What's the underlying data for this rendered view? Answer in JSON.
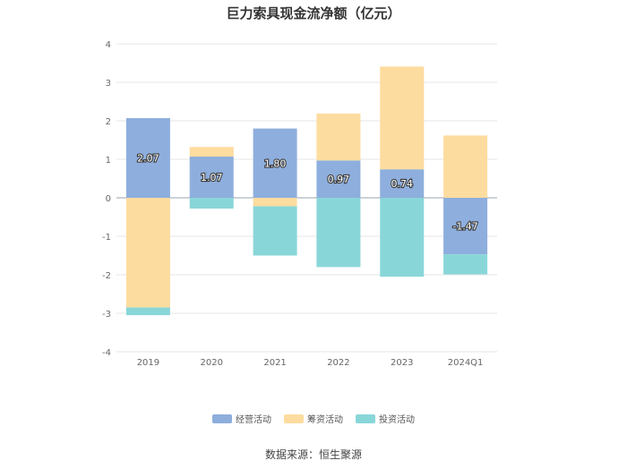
{
  "chart_data": {
    "type": "bar",
    "stacked": true,
    "title": "巨力索具现金流净额（亿元）",
    "categories": [
      "2019",
      "2020",
      "2021",
      "2022",
      "2023",
      "2024Q1"
    ],
    "series": [
      {
        "name": "经营活动",
        "color": "#8eaedd",
        "values": [
          2.07,
          1.07,
          1.8,
          0.97,
          0.74,
          -1.47
        ]
      },
      {
        "name": "筹资活动",
        "color": "#fddc9f",
        "values": [
          -2.85,
          0.25,
          -0.22,
          1.22,
          2.67,
          1.62
        ]
      },
      {
        "name": "投资活动",
        "color": "#89d6d9",
        "values": [
          -0.2,
          -0.28,
          -1.28,
          -1.8,
          -2.05,
          -0.52
        ]
      }
    ],
    "data_labels": [
      "2.07",
      "1.07",
      "1.80",
      "0.97",
      "0.74",
      "-1.47"
    ],
    "yticks": [
      "4",
      "3",
      "2",
      "1",
      "0",
      "-1",
      "-2",
      "-3",
      "-4"
    ],
    "ylim": [
      -4,
      4
    ],
    "grid": true,
    "legend_position": "bottom"
  },
  "source": "数据来源：恒生聚源"
}
